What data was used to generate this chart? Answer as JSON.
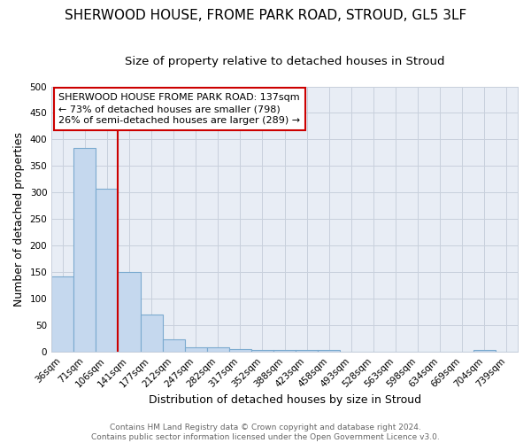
{
  "title": "SHERWOOD HOUSE, FROME PARK ROAD, STROUD, GL5 3LF",
  "subtitle": "Size of property relative to detached houses in Stroud",
  "xlabel": "Distribution of detached houses by size in Stroud",
  "ylabel": "Number of detached properties",
  "bar_labels": [
    "36sqm",
    "71sqm",
    "106sqm",
    "141sqm",
    "177sqm",
    "212sqm",
    "247sqm",
    "282sqm",
    "317sqm",
    "352sqm",
    "388sqm",
    "423sqm",
    "458sqm",
    "493sqm",
    "528sqm",
    "563sqm",
    "598sqm",
    "634sqm",
    "669sqm",
    "704sqm",
    "739sqm"
  ],
  "bar_values": [
    143,
    384,
    308,
    150,
    70,
    24,
    9,
    9,
    6,
    4,
    4,
    4,
    4,
    0,
    0,
    0,
    0,
    0,
    0,
    3,
    0
  ],
  "bar_color": "#c5d8ee",
  "bar_edge_color": "#7baacf",
  "grid_color": "#c8d0dc",
  "background_color": "#e8edf5",
  "vline_color": "#cc0000",
  "annotation_title": "SHERWOOD HOUSE FROME PARK ROAD: 137sqm",
  "annotation_line1": "← 73% of detached houses are smaller (798)",
  "annotation_line2": "26% of semi-detached houses are larger (289) →",
  "annotation_box_color": "#ffffff",
  "annotation_border_color": "#cc0000",
  "footer_line1": "Contains HM Land Registry data © Crown copyright and database right 2024.",
  "footer_line2": "Contains public sector information licensed under the Open Government Licence v3.0.",
  "ylim": [
    0,
    500
  ],
  "yticks": [
    0,
    50,
    100,
    150,
    200,
    250,
    300,
    350,
    400,
    450,
    500
  ],
  "title_fontsize": 11,
  "subtitle_fontsize": 9.5,
  "axis_label_fontsize": 9,
  "tick_fontsize": 7.5,
  "annotation_fontsize": 8,
  "footer_fontsize": 6.5
}
